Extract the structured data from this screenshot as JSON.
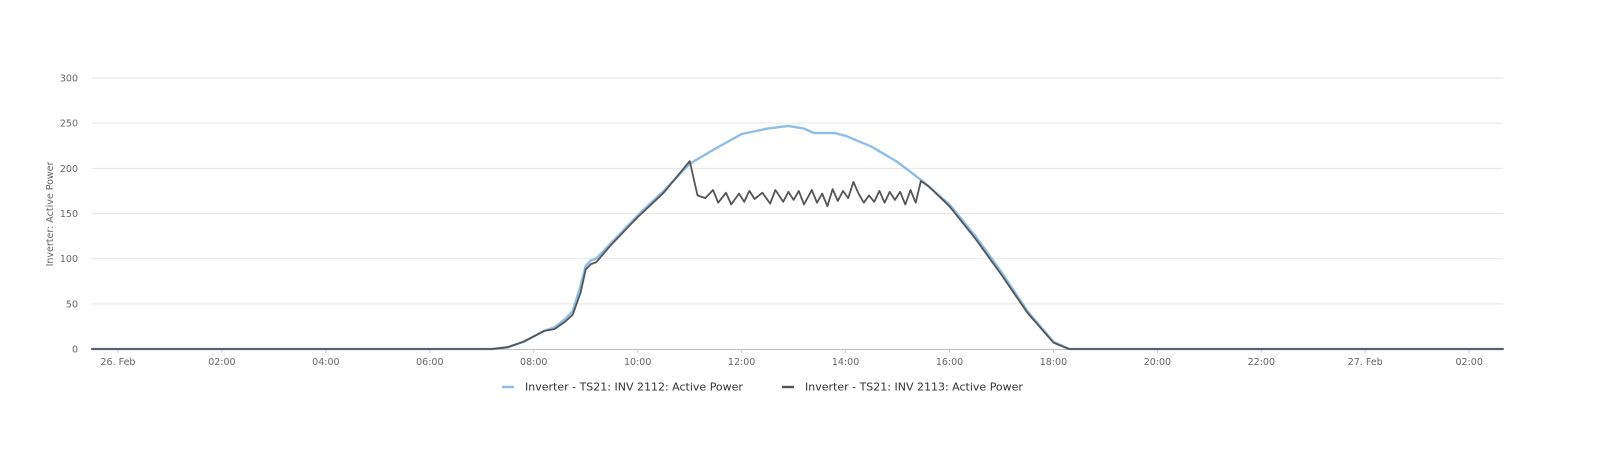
{
  "chart_data": {
    "type": "line",
    "title": "",
    "xlabel": "",
    "ylabel": "Inverter: Active Power",
    "ylim": [
      0,
      300
    ],
    "yticks": [
      0,
      50,
      100,
      150,
      200,
      250,
      300
    ],
    "xlim": [
      -0.5,
      26.65
    ],
    "xticks": [
      {
        "x": 0,
        "label": "26. Feb"
      },
      {
        "x": 2,
        "label": "02:00"
      },
      {
        "x": 4,
        "label": "04:00"
      },
      {
        "x": 6,
        "label": "06:00"
      },
      {
        "x": 8,
        "label": "08:00"
      },
      {
        "x": 10,
        "label": "10:00"
      },
      {
        "x": 12,
        "label": "12:00"
      },
      {
        "x": 14,
        "label": "14:00"
      },
      {
        "x": 16,
        "label": "16:00"
      },
      {
        "x": 18,
        "label": "18:00"
      },
      {
        "x": 20,
        "label": "20:00"
      },
      {
        "x": 22,
        "label": "22:00"
      },
      {
        "x": 24,
        "label": "27. Feb"
      },
      {
        "x": 26,
        "label": "02:00"
      }
    ],
    "grid": true,
    "legend_position": "bottom-center",
    "series": [
      {
        "name": "Inverter - TS21: INV 2112: Active Power",
        "color": "#8fbde6",
        "points": [
          [
            -0.5,
            0
          ],
          [
            7.2,
            0
          ],
          [
            7.5,
            2
          ],
          [
            7.8,
            8
          ],
          [
            8.0,
            14
          ],
          [
            8.2,
            20
          ],
          [
            8.4,
            24
          ],
          [
            8.6,
            33
          ],
          [
            8.75,
            42
          ],
          [
            8.9,
            70
          ],
          [
            9.0,
            92
          ],
          [
            9.1,
            98
          ],
          [
            9.2,
            100
          ],
          [
            9.5,
            118
          ],
          [
            10.0,
            148
          ],
          [
            10.5,
            175
          ],
          [
            11.0,
            205
          ],
          [
            11.5,
            222
          ],
          [
            12.0,
            238
          ],
          [
            12.5,
            244
          ],
          [
            12.9,
            247
          ],
          [
            13.2,
            244
          ],
          [
            13.4,
            239
          ],
          [
            13.8,
            239
          ],
          [
            14.0,
            236
          ],
          [
            14.5,
            224
          ],
          [
            15.0,
            207
          ],
          [
            15.5,
            185
          ],
          [
            16.0,
            160
          ],
          [
            16.5,
            125
          ],
          [
            17.0,
            85
          ],
          [
            17.5,
            42
          ],
          [
            18.0,
            8
          ],
          [
            18.3,
            0
          ],
          [
            26.65,
            0
          ]
        ]
      },
      {
        "name": "Inverter - TS21: INV 2113: Active Power",
        "color": "#555555",
        "points": [
          [
            -0.5,
            0
          ],
          [
            7.2,
            0
          ],
          [
            7.5,
            2
          ],
          [
            7.8,
            8
          ],
          [
            8.0,
            14
          ],
          [
            8.2,
            20
          ],
          [
            8.4,
            22
          ],
          [
            8.6,
            30
          ],
          [
            8.75,
            38
          ],
          [
            8.9,
            62
          ],
          [
            9.0,
            88
          ],
          [
            9.1,
            94
          ],
          [
            9.2,
            96
          ],
          [
            9.5,
            116
          ],
          [
            10.0,
            146
          ],
          [
            10.5,
            173
          ],
          [
            11.0,
            208
          ],
          [
            11.15,
            170
          ],
          [
            11.3,
            167
          ],
          [
            11.45,
            176
          ],
          [
            11.55,
            162
          ],
          [
            11.7,
            173
          ],
          [
            11.8,
            160
          ],
          [
            11.95,
            172
          ],
          [
            12.05,
            163
          ],
          [
            12.15,
            175
          ],
          [
            12.25,
            166
          ],
          [
            12.4,
            173
          ],
          [
            12.55,
            161
          ],
          [
            12.65,
            176
          ],
          [
            12.8,
            163
          ],
          [
            12.9,
            174
          ],
          [
            13.0,
            165
          ],
          [
            13.1,
            175
          ],
          [
            13.2,
            160
          ],
          [
            13.35,
            176
          ],
          [
            13.45,
            162
          ],
          [
            13.55,
            172
          ],
          [
            13.65,
            158
          ],
          [
            13.75,
            177
          ],
          [
            13.85,
            164
          ],
          [
            13.95,
            175
          ],
          [
            14.05,
            167
          ],
          [
            14.15,
            185
          ],
          [
            14.25,
            172
          ],
          [
            14.35,
            162
          ],
          [
            14.45,
            170
          ],
          [
            14.55,
            163
          ],
          [
            14.65,
            175
          ],
          [
            14.75,
            162
          ],
          [
            14.85,
            174
          ],
          [
            14.95,
            165
          ],
          [
            15.05,
            174
          ],
          [
            15.15,
            160
          ],
          [
            15.25,
            176
          ],
          [
            15.35,
            162
          ],
          [
            15.45,
            186
          ],
          [
            15.6,
            180
          ],
          [
            16.0,
            158
          ],
          [
            16.5,
            122
          ],
          [
            17.0,
            82
          ],
          [
            17.5,
            40
          ],
          [
            18.0,
            7
          ],
          [
            18.3,
            0
          ],
          [
            26.65,
            0
          ]
        ]
      }
    ]
  }
}
